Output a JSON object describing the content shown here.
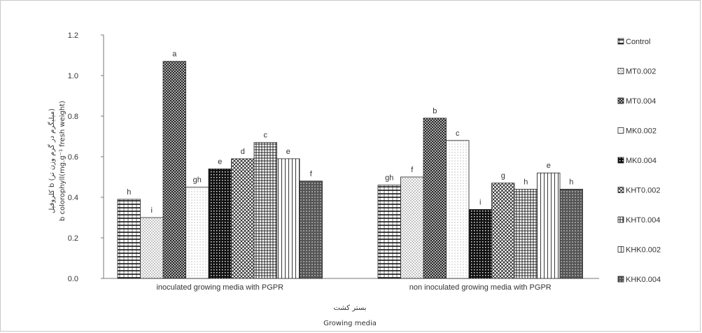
{
  "chart_data": {
    "type": "bar",
    "xlabel_lines": [
      "بستر کشت",
      "Growing media"
    ],
    "ylabel_lines": [
      "کلروفیل b (میلیگرم در گرم وزن تر)",
      "b colorophyll(mg.g⁻¹ fresh weight)"
    ],
    "ylim": [
      0,
      1.2
    ],
    "yticks": [
      "0.0",
      "0.2",
      "0.4",
      "0.6",
      "0.8",
      "1.0",
      "1.2"
    ],
    "grid": false,
    "legend_position": "right",
    "categories": [
      "inoculated growing media with PGPR",
      "non  inoculated growing media with PGPR"
    ],
    "series": [
      {
        "name": "Control",
        "values": [
          0.39,
          0.46
        ],
        "letters": [
          "h",
          "gh"
        ]
      },
      {
        "name": "MT0.002",
        "values": [
          0.3,
          0.5
        ],
        "letters": [
          "i",
          "f"
        ]
      },
      {
        "name": "MT0.004",
        "values": [
          1.07,
          0.79
        ],
        "letters": [
          "a",
          "b"
        ]
      },
      {
        "name": "MK0.002",
        "values": [
          0.45,
          0.68
        ],
        "letters": [
          "gh",
          "c"
        ]
      },
      {
        "name": "MK0.004",
        "values": [
          0.54,
          0.34
        ],
        "letters": [
          "e",
          "i"
        ]
      },
      {
        "name": "KHT0.002",
        "values": [
          0.59,
          0.47
        ],
        "letters": [
          "d",
          "g"
        ]
      },
      {
        "name": "KHT0.004",
        "values": [
          0.67,
          0.44
        ],
        "letters": [
          "c",
          "h"
        ]
      },
      {
        "name": "KHK0.002",
        "values": [
          0.59,
          0.52
        ],
        "letters": [
          "e",
          "e"
        ]
      },
      {
        "name": "KHK0.004",
        "values": [
          0.48,
          0.44
        ],
        "letters": [
          "f",
          "h"
        ]
      }
    ]
  }
}
